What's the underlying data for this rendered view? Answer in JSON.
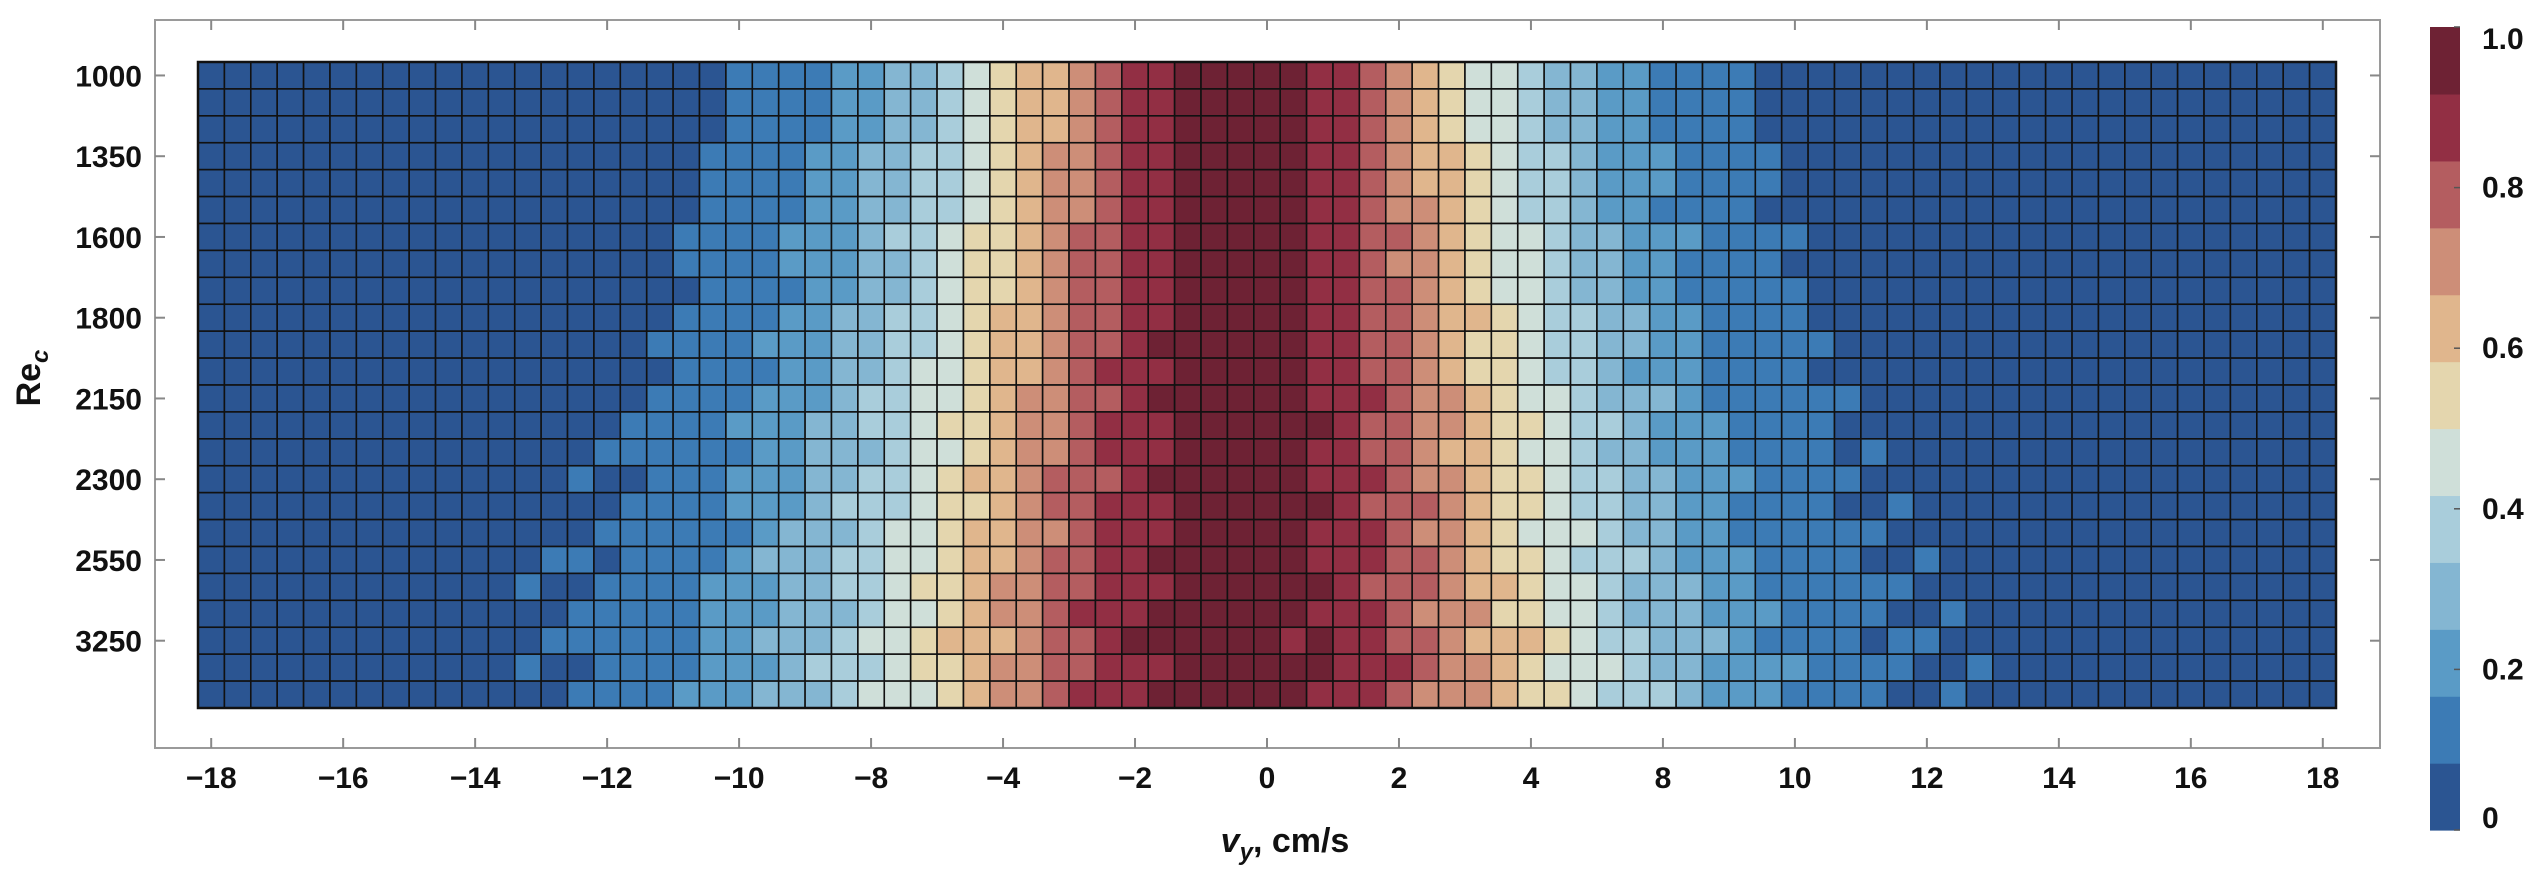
{
  "chart_data": {
    "type": "heatmap",
    "title": "",
    "xlabel": "v",
    "xlabel_subscript": "y",
    "xlabel_suffix": ", cm/s",
    "ylabel": "Re",
    "ylabel_subscript": "c",
    "x_ticks": [
      "−18",
      "−16",
      "−14",
      "−12",
      "−10",
      "−8",
      "−4",
      "−2",
      "0",
      "2",
      "4",
      "8",
      "10",
      "12",
      "14",
      "16",
      "18"
    ],
    "y_ticks": [
      "1000",
      "1350",
      "1600",
      "1800",
      "2150",
      "2300",
      "2550",
      "3250"
    ],
    "grid": true,
    "columns": 81,
    "rows": 24,
    "x_range": [
      -18,
      18
    ],
    "row_groups": [
      {
        "label": "1000",
        "rows": 3,
        "spread": 1.0
      },
      {
        "label": "1350",
        "rows": 3,
        "spread": 1.05
      },
      {
        "label": "1600",
        "rows": 3,
        "spread": 1.1
      },
      {
        "label": "1800",
        "rows": 3,
        "spread": 1.15
      },
      {
        "label": "2150",
        "rows": 3,
        "spread": 1.2
      },
      {
        "label": "2300",
        "rows": 3,
        "spread": 1.25
      },
      {
        "label": "2550",
        "rows": 3,
        "spread": 1.3
      },
      {
        "label": "3250",
        "rows": 3,
        "spread": 1.35
      }
    ],
    "profile": {
      "peak_x": -0.5,
      "peak_value": 1.0,
      "half_width_x_at_0_5": 3.5,
      "value_at_edges": 0.0
    },
    "colorbar": {
      "min": 0,
      "max": 1,
      "ticks": [
        "0",
        "0.2",
        "0.4",
        "0.6",
        "0.8",
        "1.0"
      ],
      "levels": 10,
      "colors": [
        "#2b5592",
        "#3c7bb5",
        "#5a9bc6",
        "#84b6d2",
        "#a9cddb",
        "#cfdfd9",
        "#e4d6ae",
        "#e0b68d",
        "#cd8e78",
        "#b45d60",
        "#922f44",
        "#6e2234"
      ]
    }
  }
}
